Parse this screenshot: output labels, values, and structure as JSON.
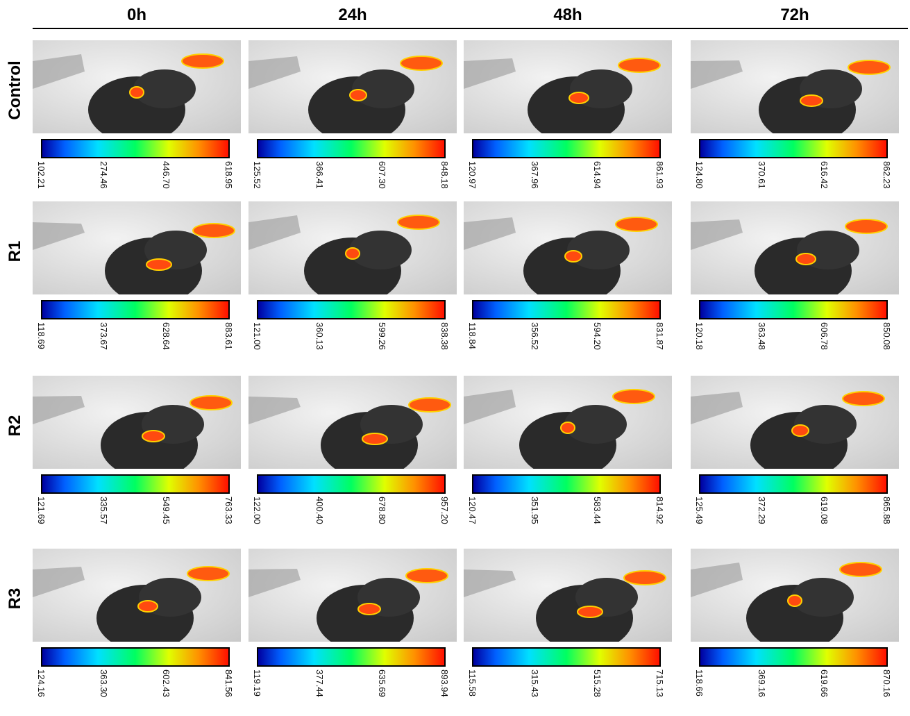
{
  "columns": [
    "0h",
    "24h",
    "48h",
    "72h"
  ],
  "rows": [
    {
      "label": "Control",
      "scales": [
        [
          "102.21",
          "274.46",
          "446.70",
          "618.95"
        ],
        [
          "125.52",
          "366.41",
          "607.30",
          "848.18"
        ],
        [
          "120.97",
          "367.96",
          "614.94",
          "861.93"
        ],
        [
          "124.80",
          "370.61",
          "616.42",
          "862.23"
        ]
      ]
    },
    {
      "label": "R1",
      "scales": [
        [
          "118.69",
          "373.67",
          "628.64",
          "883.61"
        ],
        [
          "121.00",
          "360.13",
          "599.26",
          "838.38"
        ],
        [
          "118.84",
          "356.52",
          "594.20",
          "831.87"
        ],
        [
          "120.18",
          "363.48",
          "606.78",
          "850.08"
        ]
      ]
    },
    {
      "label": "R2",
      "scales": [
        [
          "121.69",
          "335.57",
          "549.45",
          "763.33"
        ],
        [
          "122.00",
          "400.40",
          "678.80",
          "957.20"
        ],
        [
          "120.47",
          "351.95",
          "583.44",
          "814.92"
        ],
        [
          "125.49",
          "372.29",
          "619.08",
          "865.88"
        ]
      ]
    },
    {
      "label": "R3",
      "scales": [
        [
          "124.16",
          "363.30",
          "602.43",
          "841.56"
        ],
        [
          "119.19",
          "377.44",
          "635.69",
          "893.94"
        ],
        [
          "115.58",
          "315.43",
          "515.28",
          "715.13"
        ],
        [
          "118.66",
          "369.16",
          "619.66",
          "870.16"
        ]
      ]
    }
  ]
}
